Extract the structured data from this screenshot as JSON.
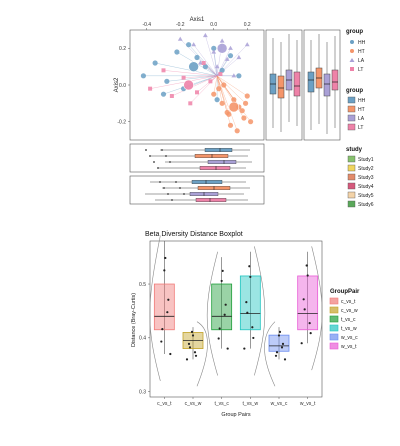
{
  "colors": {
    "HH": "#6ba0c4",
    "HT": "#f4956a",
    "LA": "#a9a0d6",
    "LT": "#ee82a8",
    "study": [
      "#86c16d",
      "#f0d55e",
      "#e38b6a",
      "#d5597c",
      "#f3d3a8",
      "#5aa85a"
    ],
    "pairs": [
      "#f07a78",
      "#c3a32a",
      "#1f9e3a",
      "#22c5c0",
      "#6c8ef0",
      "#e85cd6"
    ]
  },
  "top": {
    "axis1_label": "Axis1",
    "axis2_label": "Axis2",
    "x_ticks": [
      "-0.4",
      "-0.2",
      "0.0",
      "0.2"
    ],
    "y_ticks": [
      "0.2",
      "0.0",
      "-0.2"
    ],
    "legend_group_shapes": {
      "title": "group",
      "items": [
        "HH",
        "HT",
        "LA",
        "LT"
      ]
    },
    "legend_group_boxes": {
      "title": "group",
      "items": [
        "HH",
        "HT",
        "LA",
        "LT"
      ]
    },
    "legend_study": {
      "title": "study",
      "items": [
        "Study1",
        "Study2",
        "Study3",
        "Study4",
        "Study5",
        "Study6"
      ]
    }
  },
  "chart_data": [
    {
      "type": "scatter",
      "title": "",
      "xlabel": "Axis1",
      "ylabel": "Axis2",
      "xlim": [
        -0.5,
        0.3
      ],
      "ylim": [
        -0.3,
        0.3
      ],
      "legend": "right",
      "series": [
        {
          "name": "HH",
          "marker": "circle",
          "x": [
            -0.42,
            -0.35,
            -0.28,
            -0.22,
            -0.18,
            -0.1,
            -0.05,
            0.0,
            0.05,
            0.1,
            0.15,
            -0.3,
            -0.15,
            0.02
          ],
          "y": [
            0.05,
            0.12,
            0.02,
            0.18,
            -0.02,
            0.15,
            0.1,
            0.2,
            0.08,
            0.16,
            0.05,
            -0.05,
            0.22,
            -0.08
          ]
        },
        {
          "name": "HT",
          "marker": "circle",
          "x": [
            0.0,
            0.05,
            0.08,
            0.12,
            0.15,
            0.18,
            0.2,
            0.22,
            0.1,
            0.06,
            0.14,
            0.17,
            0.03,
            0.09,
            0.19
          ],
          "y": [
            -0.05,
            -0.1,
            -0.15,
            -0.08,
            -0.12,
            -0.18,
            -0.06,
            -0.2,
            -0.22,
            0.0,
            -0.25,
            -0.14,
            -0.02,
            -0.16,
            -0.1
          ]
        },
        {
          "name": "LA",
          "marker": "triangle",
          "x": [
            -0.2,
            -0.12,
            -0.05,
            0.0,
            0.05,
            0.1,
            0.15,
            0.2,
            -0.08,
            0.02,
            0.08,
            0.12
          ],
          "y": [
            0.25,
            0.22,
            0.27,
            0.18,
            0.24,
            0.2,
            0.15,
            0.22,
            0.12,
            0.1,
            0.14,
            0.05
          ]
        },
        {
          "name": "LT",
          "marker": "square",
          "x": [
            -0.38,
            -0.3,
            -0.25,
            -0.18,
            -0.1,
            -0.02,
            0.04,
            -0.14,
            -0.06
          ],
          "y": [
            -0.02,
            0.08,
            -0.06,
            0.04,
            -0.04,
            0.02,
            0.06,
            -0.1,
            0.12
          ]
        }
      ]
    },
    {
      "type": "box",
      "title": "Beta Diversity Distance Boxplot",
      "xlabel": "Group Pairs",
      "ylabel": "Distance (Bray-Curtis)",
      "ylim": [
        0.29,
        0.58
      ],
      "y_ticks": [
        "0.5",
        "0.4",
        "0.3"
      ],
      "legend": "right",
      "legend_title": "GroupPair",
      "categories": [
        "c_vs_t",
        "c_vs_w",
        "t_vs_c",
        "t_vs_w",
        "w_vs_c",
        "w_vs_t"
      ],
      "boxes": [
        {
          "name": "c_vs_t",
          "q1": 0.415,
          "median": 0.44,
          "q3": 0.5,
          "min": 0.37,
          "max": 0.58
        },
        {
          "name": "c_vs_w",
          "q1": 0.38,
          "median": 0.395,
          "q3": 0.41,
          "min": 0.36,
          "max": 0.42
        },
        {
          "name": "t_vs_c",
          "q1": 0.415,
          "median": 0.44,
          "q3": 0.5,
          "min": 0.38,
          "max": 0.55
        },
        {
          "name": "t_vs_w",
          "q1": 0.415,
          "median": 0.445,
          "q3": 0.515,
          "min": 0.38,
          "max": 0.56
        },
        {
          "name": "w_vs_c",
          "q1": 0.375,
          "median": 0.385,
          "q3": 0.405,
          "min": 0.36,
          "max": 0.42
        },
        {
          "name": "w_vs_t",
          "q1": 0.415,
          "median": 0.445,
          "q3": 0.515,
          "min": 0.39,
          "max": 0.56
        }
      ]
    }
  ]
}
